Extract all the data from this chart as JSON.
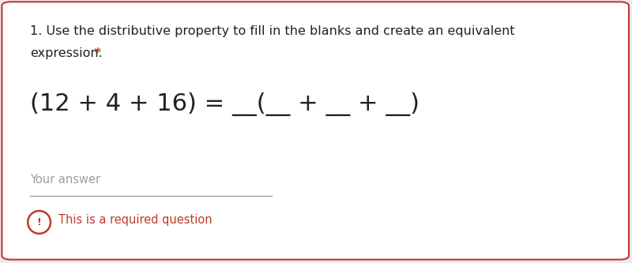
{
  "bg_color": "#ece9f1",
  "card_color": "#ffffff",
  "card_border_color": "#c0392b",
  "title_line1": "1. Use the distributive property to fill in the blanks and create an equivalent",
  "title_line2": "expression.",
  "required_star": " *",
  "title_color": "#212121",
  "title_fontsize": 11.5,
  "required_star_color": "#c0392b",
  "equation_text": "(12 + 4 + 16) = __(__ + __ + __)",
  "equation_fontsize": 22,
  "equation_color": "#212121",
  "your_answer_text": "Your answer",
  "your_answer_color": "#9e9e9e",
  "your_answer_fontsize": 10.5,
  "answer_line_color": "#9e9e9e",
  "required_msg": "This is a required question",
  "required_msg_color": "#c0392b",
  "required_msg_fontsize": 10.5,
  "icon_color": "#c0392b"
}
